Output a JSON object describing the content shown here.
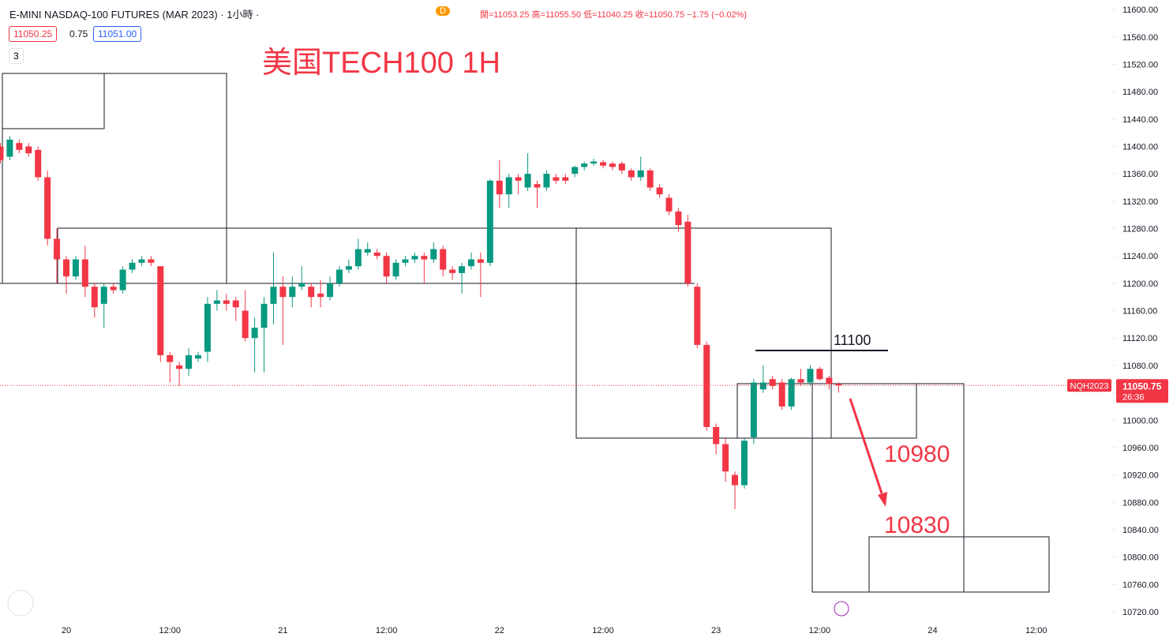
{
  "header": {
    "symbol": "E-MINI NASDAQ-100 FUTURES (MAR 2023) · 1小時 ·",
    "indicator": "D",
    "ohlc": "開=11053.25 高=11055.50 低=11040.25 收=11050.75 −1.75 (−0.02%)",
    "bid": "11050.25",
    "spread": "0.75",
    "ask": "11051.00",
    "studies": "3"
  },
  "chart_data": {
    "type": "candlestick",
    "title": "美国TECH100 1H",
    "categories": [
      null,
      null,
      null,
      null,
      null,
      null,
      null,
      "20",
      null,
      null,
      null,
      null,
      null,
      null,
      null,
      null,
      null,
      null,
      "12:00",
      null,
      null,
      null,
      null,
      null,
      null,
      null,
      null,
      null,
      null,
      null,
      "21",
      null,
      null,
      null,
      null,
      null,
      null,
      null,
      null,
      null,
      null,
      "12:00",
      null,
      null,
      null,
      null,
      null,
      null,
      null,
      null,
      null,
      null,
      null,
      "22",
      null,
      null,
      null,
      null,
      null,
      null,
      null,
      null,
      null,
      null,
      "12:00",
      null,
      null,
      null,
      null,
      null,
      null,
      null,
      null,
      null,
      null,
      null,
      "23",
      null,
      null,
      null,
      null,
      null,
      null,
      null,
      null,
      null,
      null,
      "12:00",
      null,
      null,
      null,
      null,
      null,
      null,
      null,
      null,
      null,
      null,
      null,
      "24",
      null,
      null,
      null,
      null,
      null,
      null,
      null,
      null,
      null,
      null,
      "12:00",
      null,
      null,
      null,
      null,
      null,
      null,
      null
    ],
    "open": [
      11400,
      11385,
      11405,
      11400,
      11395,
      11355,
      11265,
      11235,
      11210,
      11235,
      11195,
      11170,
      11195,
      11190,
      11220,
      11230,
      11235,
      11225,
      11095,
      11080,
      11075,
      11090,
      11100,
      11170,
      11175,
      11175,
      11160,
      11120,
      11135,
      11170,
      11195,
      11180,
      11195,
      11195,
      11185,
      11180,
      11200,
      11220,
      11225,
      11245,
      11245,
      11240,
      11210,
      11230,
      11235,
      11240,
      11235,
      11250,
      11220,
      11215,
      11225,
      11235,
      11230,
      11350,
      11330,
      11355,
      11340,
      11345,
      11340,
      11355,
      11355,
      11360,
      11370,
      11375,
      11377,
      11375,
      11375,
      11365,
      11355,
      11365,
      11340,
      11325,
      11305,
      11290,
      11195,
      11110,
      10990,
      10965,
      10920,
      10905,
      10975,
      11045,
      11060,
      11055,
      11020,
      11060,
      11055,
      11075,
      11062,
      11053.25,
      null,
      null,
      null,
      null,
      null,
      null,
      null,
      null,
      null,
      null,
      null,
      null,
      null,
      null,
      null,
      null,
      null,
      null,
      null,
      null,
      null,
      null,
      null,
      null,
      null,
      null,
      null,
      null
    ],
    "high": [
      11405,
      11415,
      11410,
      11405,
      11400,
      11365,
      11280,
      11240,
      11240,
      11255,
      11200,
      11200,
      11200,
      11225,
      11235,
      11240,
      11240,
      11225,
      11100,
      11085,
      11105,
      11100,
      11180,
      11190,
      11185,
      11180,
      11190,
      11150,
      11180,
      11245,
      11210,
      11210,
      11225,
      11200,
      11205,
      11210,
      11225,
      11235,
      11265,
      11260,
      11250,
      11245,
      11235,
      11240,
      11245,
      11245,
      11260,
      11255,
      11225,
      11230,
      11245,
      11245,
      11352,
      11380,
      11360,
      11360,
      11390,
      11350,
      11365,
      11360,
      11360,
      11372,
      11378,
      11382,
      11380,
      11378,
      11378,
      11368,
      11385,
      11368,
      11345,
      11330,
      11310,
      11300,
      11200,
      11115,
      10995,
      10975,
      10925,
      10975,
      11060,
      11080,
      11065,
      11060,
      11062,
      11075,
      11080,
      11078,
      11065,
      11055.5,
      null,
      null,
      null,
      null,
      null,
      null,
      null,
      null,
      null,
      null,
      null,
      null,
      null,
      null,
      null,
      null,
      null,
      null,
      null,
      null,
      null,
      null,
      null,
      null,
      null,
      null,
      null,
      null
    ],
    "low": [
      11375,
      11380,
      11390,
      11385,
      11350,
      11255,
      11200,
      11185,
      11205,
      11180,
      11150,
      11135,
      11185,
      11185,
      11215,
      11225,
      11225,
      11085,
      11055,
      11050,
      11065,
      11085,
      11085,
      11160,
      11160,
      11145,
      11115,
      11070,
      11070,
      11140,
      11110,
      11165,
      11190,
      11165,
      11165,
      11175,
      11195,
      11215,
      11220,
      11240,
      11235,
      11200,
      11205,
      11225,
      11230,
      11200,
      11230,
      11210,
      11205,
      11185,
      11220,
      11180,
      11225,
      11310,
      11310,
      11330,
      11335,
      11310,
      11335,
      11345,
      11345,
      11355,
      11365,
      11372,
      11368,
      11365,
      11360,
      11350,
      11350,
      11335,
      11325,
      11300,
      11275,
      11195,
      11105,
      10985,
      10950,
      10910,
      10870,
      10900,
      10965,
      11040,
      11045,
      11015,
      11015,
      11050,
      11050,
      11058,
      11045,
      11040.25,
      null,
      null,
      null,
      null,
      null,
      null,
      null,
      null,
      null,
      null,
      null,
      null,
      null,
      null,
      null,
      null,
      null,
      null,
      null,
      null,
      null,
      null,
      null,
      null,
      null,
      null,
      null,
      null
    ],
    "close": [
      11380,
      11410,
      11395,
      11390,
      11355,
      11265,
      11235,
      11210,
      11235,
      11195,
      11165,
      11195,
      11190,
      11220,
      11230,
      11235,
      11230,
      11095,
      11085,
      11075,
      11095,
      11095,
      11170,
      11175,
      11170,
      11165,
      11120,
      11135,
      11170,
      11195,
      11180,
      11195,
      11200,
      11180,
      11180,
      11200,
      11220,
      11225,
      11250,
      11250,
      11240,
      11210,
      11230,
      11235,
      11240,
      11235,
      11250,
      11220,
      11215,
      11225,
      11235,
      11230,
      11350,
      11330,
      11355,
      11350,
      11360,
      11340,
      11360,
      11350,
      11350,
      11370,
      11375,
      11378,
      11372,
      11370,
      11365,
      11355,
      11365,
      11340,
      11330,
      11305,
      11285,
      11200,
      11110,
      10990,
      10965,
      10925,
      10905,
      10970,
      11055,
      11055,
      11050,
      11020,
      11060,
      11055,
      11075,
      11060,
      11053,
      11050.75,
      null,
      null,
      null,
      null,
      null,
      null,
      null,
      null,
      null,
      null,
      null,
      null,
      null,
      null,
      null,
      null,
      null,
      null,
      null,
      null,
      null,
      null,
      null,
      null,
      null,
      null,
      null,
      null
    ],
    "up_color": "#089981",
    "down_color": "#f23645",
    "ylim": [
      10705,
      11614
    ],
    "yticks": [
      {
        "value": 11600,
        "label": "11600.00"
      },
      {
        "value": 11560,
        "label": "11560.00"
      },
      {
        "value": 11520,
        "label": "11520.00"
      },
      {
        "value": 11480,
        "label": "11480.00"
      },
      {
        "value": 11440,
        "label": "11440.00"
      },
      {
        "value": 11400,
        "label": "11400.00"
      },
      {
        "value": 11360,
        "label": "11360.00"
      },
      {
        "value": 11320,
        "label": "11320.00"
      },
      {
        "value": 11280,
        "label": "11280.00"
      },
      {
        "value": 11240,
        "label": "11240.00"
      },
      {
        "value": 11200,
        "label": "11200.00"
      },
      {
        "value": 11160,
        "label": "11160.00"
      },
      {
        "value": 11120,
        "label": "11120.00"
      },
      {
        "value": 11080,
        "label": "11080.00"
      },
      {
        "value": 11040,
        "label": "11040.00"
      },
      {
        "value": 11000,
        "label": "11000.00"
      },
      {
        "value": 10960,
        "label": "10960.00"
      },
      {
        "value": 10920,
        "label": "10920.00"
      },
      {
        "value": 10880,
        "label": "10880.00"
      },
      {
        "value": 10840,
        "label": "10840.00"
      },
      {
        "value": 10800,
        "label": "10800.00"
      },
      {
        "value": 10760,
        "label": "10760.00"
      },
      {
        "value": 10720,
        "label": "10720.00"
      }
    ],
    "last_price": {
      "symbol": "NQH2023",
      "value": 11050.75,
      "countdown": "26:36"
    },
    "annotations": [
      "11100",
      "10980",
      "10830"
    ]
  }
}
